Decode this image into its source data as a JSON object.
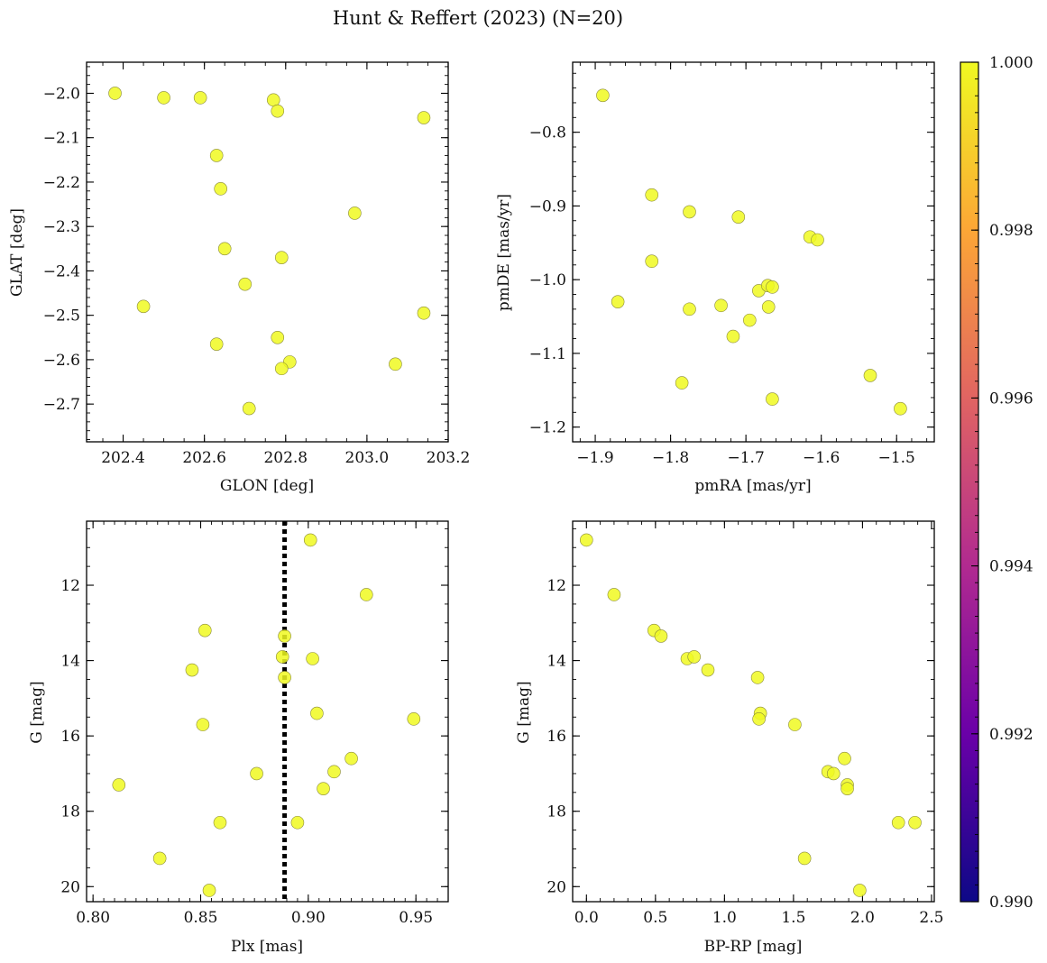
{
  "figure": {
    "title": "Hunt & Reffert (2023) (N=20)"
  },
  "colorbar": {
    "min": 0.99,
    "max": 1.0,
    "ticks": [
      "0.990",
      "0.992",
      "0.994",
      "0.996",
      "0.998",
      "1.000"
    ],
    "colors": [
      "#0d0887",
      "#6a00a8",
      "#b12a90",
      "#e16462",
      "#fca636",
      "#f0f921"
    ]
  },
  "chart_data": [
    {
      "id": "glon-glat",
      "type": "scatter",
      "xlabel": "GLON [deg]",
      "ylabel": "GLAT [deg]",
      "xlim": [
        202.31,
        203.2
      ],
      "ylim": [
        -2.785,
        -1.93
      ],
      "xticks": [
        202.4,
        202.6,
        202.8,
        203.0,
        203.2
      ],
      "xtick_labels": [
        "202.4",
        "202.6",
        "202.8",
        "203.0",
        "203.2"
      ],
      "yticks": [
        -2.0,
        -2.1,
        -2.2,
        -2.3,
        -2.4,
        -2.5,
        -2.6,
        -2.7
      ],
      "ytick_labels": [
        "−2.0",
        "−2.1",
        "−2.2",
        "−2.3",
        "−2.4",
        "−2.5",
        "−2.6",
        "−2.7"
      ],
      "points": [
        [
          202.38,
          -2.0
        ],
        [
          202.5,
          -2.01
        ],
        [
          202.59,
          -2.01
        ],
        [
          202.77,
          -2.015
        ],
        [
          202.78,
          -2.04
        ],
        [
          203.14,
          -2.055
        ],
        [
          202.63,
          -2.14
        ],
        [
          202.64,
          -2.215
        ],
        [
          202.97,
          -2.27
        ],
        [
          202.65,
          -2.35
        ],
        [
          202.79,
          -2.37
        ],
        [
          202.7,
          -2.43
        ],
        [
          202.45,
          -2.48
        ],
        [
          203.14,
          -2.495
        ],
        [
          202.78,
          -2.55
        ],
        [
          202.63,
          -2.565
        ],
        [
          202.81,
          -2.605
        ],
        [
          202.79,
          -2.62
        ],
        [
          203.07,
          -2.61
        ],
        [
          202.71,
          -2.71
        ]
      ]
    },
    {
      "id": "pmra-pmde",
      "type": "scatter",
      "xlabel": "pmRA [mas/yr]",
      "ylabel": "pmDE [mas/yr]",
      "xlim": [
        -1.93,
        -1.45
      ],
      "ylim": [
        -1.22,
        -0.705
      ],
      "xticks": [
        -1.9,
        -1.8,
        -1.7,
        -1.6,
        -1.5
      ],
      "xtick_labels": [
        "−1.9",
        "−1.8",
        "−1.7",
        "−1.6",
        "−1.5"
      ],
      "yticks": [
        -0.8,
        -0.9,
        -1.0,
        -1.1,
        -1.2
      ],
      "ytick_labels": [
        "−0.8",
        "−0.9",
        "−1.0",
        "−1.1",
        "−1.2"
      ],
      "points": [
        [
          -1.89,
          -0.75
        ],
        [
          -1.825,
          -0.885
        ],
        [
          -1.775,
          -0.908
        ],
        [
          -1.71,
          -0.915
        ],
        [
          -1.615,
          -0.942
        ],
        [
          -1.605,
          -0.946
        ],
        [
          -1.825,
          -0.975
        ],
        [
          -1.87,
          -1.03
        ],
        [
          -1.683,
          -1.015
        ],
        [
          -1.671,
          -1.008
        ],
        [
          -1.665,
          -1.01
        ],
        [
          -1.775,
          -1.04
        ],
        [
          -1.733,
          -1.035
        ],
        [
          -1.67,
          -1.037
        ],
        [
          -1.695,
          -1.055
        ],
        [
          -1.717,
          -1.077
        ],
        [
          -1.535,
          -1.13
        ],
        [
          -1.785,
          -1.14
        ],
        [
          -1.665,
          -1.162
        ],
        [
          -1.495,
          -1.175
        ]
      ]
    },
    {
      "id": "plx-g",
      "type": "scatter",
      "xlabel": "Plx [mas]",
      "ylabel": "G [mag]",
      "xlim": [
        0.797,
        0.965
      ],
      "ylim": [
        20.4,
        10.3
      ],
      "xticks": [
        0.8,
        0.85,
        0.9,
        0.95
      ],
      "xtick_labels": [
        "0.80",
        "0.85",
        "0.90",
        "0.95"
      ],
      "yticks": [
        12,
        14,
        16,
        18,
        20
      ],
      "ytick_labels": [
        "12",
        "14",
        "16",
        "18",
        "20"
      ],
      "reference_line_x": 0.889,
      "points": [
        [
          0.901,
          10.8
        ],
        [
          0.927,
          12.25
        ],
        [
          0.852,
          13.2
        ],
        [
          0.889,
          13.35
        ],
        [
          0.888,
          13.9
        ],
        [
          0.902,
          13.95
        ],
        [
          0.846,
          14.25
        ],
        [
          0.889,
          14.45
        ],
        [
          0.904,
          15.4
        ],
        [
          0.949,
          15.55
        ],
        [
          0.851,
          15.7
        ],
        [
          0.92,
          16.6
        ],
        [
          0.912,
          16.95
        ],
        [
          0.876,
          17.0
        ],
        [
          0.812,
          17.3
        ],
        [
          0.907,
          17.4
        ],
        [
          0.859,
          18.3
        ],
        [
          0.895,
          18.3
        ],
        [
          0.831,
          19.25
        ],
        [
          0.854,
          20.1
        ]
      ]
    },
    {
      "id": "bprp-g",
      "type": "scatter",
      "xlabel": "BP-RP [mag]",
      "ylabel": "G [mag]",
      "xlim": [
        -0.1,
        2.52
      ],
      "ylim": [
        20.4,
        10.3
      ],
      "xticks": [
        0.0,
        0.5,
        1.0,
        1.5,
        2.0,
        2.5
      ],
      "xtick_labels": [
        "0.0",
        "0.5",
        "1.0",
        "1.5",
        "2.0",
        "2.5"
      ],
      "yticks": [
        12,
        14,
        16,
        18,
        20
      ],
      "ytick_labels": [
        "12",
        "14",
        "16",
        "18",
        "20"
      ],
      "points": [
        [
          0.0,
          10.8
        ],
        [
          0.2,
          12.25
        ],
        [
          0.49,
          13.2
        ],
        [
          0.54,
          13.35
        ],
        [
          0.73,
          13.95
        ],
        [
          0.78,
          13.9
        ],
        [
          0.88,
          14.25
        ],
        [
          1.24,
          14.45
        ],
        [
          1.26,
          15.4
        ],
        [
          1.25,
          15.55
        ],
        [
          1.51,
          15.7
        ],
        [
          1.87,
          16.6
        ],
        [
          1.75,
          16.95
        ],
        [
          1.79,
          17.0
        ],
        [
          1.89,
          17.3
        ],
        [
          1.89,
          17.4
        ],
        [
          2.26,
          18.3
        ],
        [
          2.38,
          18.3
        ],
        [
          1.58,
          19.25
        ],
        [
          1.98,
          20.1
        ]
      ]
    }
  ]
}
